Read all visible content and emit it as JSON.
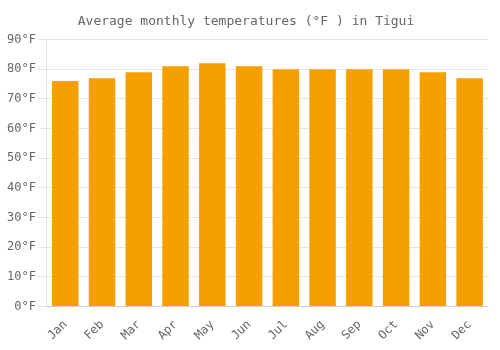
{
  "chart_data": {
    "type": "bar",
    "title": "Average monthly temperatures (°F ) in Tigui",
    "categories": [
      "Jan",
      "Feb",
      "Mar",
      "Apr",
      "May",
      "Jun",
      "Jul",
      "Aug",
      "Sep",
      "Oct",
      "Nov",
      "Dec"
    ],
    "values": [
      76,
      77,
      79,
      81,
      82,
      81,
      80,
      80,
      80,
      80,
      79,
      77
    ],
    "color": "#F5A000",
    "ylim": [
      0,
      90
    ],
    "yticks": [
      {
        "value": 0,
        "label": "0°F"
      },
      {
        "value": 10,
        "label": "10°F"
      },
      {
        "value": 20,
        "label": "20°F"
      },
      {
        "value": 30,
        "label": "30°F"
      },
      {
        "value": 40,
        "label": "40°F"
      },
      {
        "value": 50,
        "label": "50°F"
      },
      {
        "value": 60,
        "label": "60°F"
      },
      {
        "value": 70,
        "label": "70°F"
      },
      {
        "value": 80,
        "label": "80°F"
      },
      {
        "value": 90,
        "label": "90°F"
      }
    ],
    "grid": true
  }
}
